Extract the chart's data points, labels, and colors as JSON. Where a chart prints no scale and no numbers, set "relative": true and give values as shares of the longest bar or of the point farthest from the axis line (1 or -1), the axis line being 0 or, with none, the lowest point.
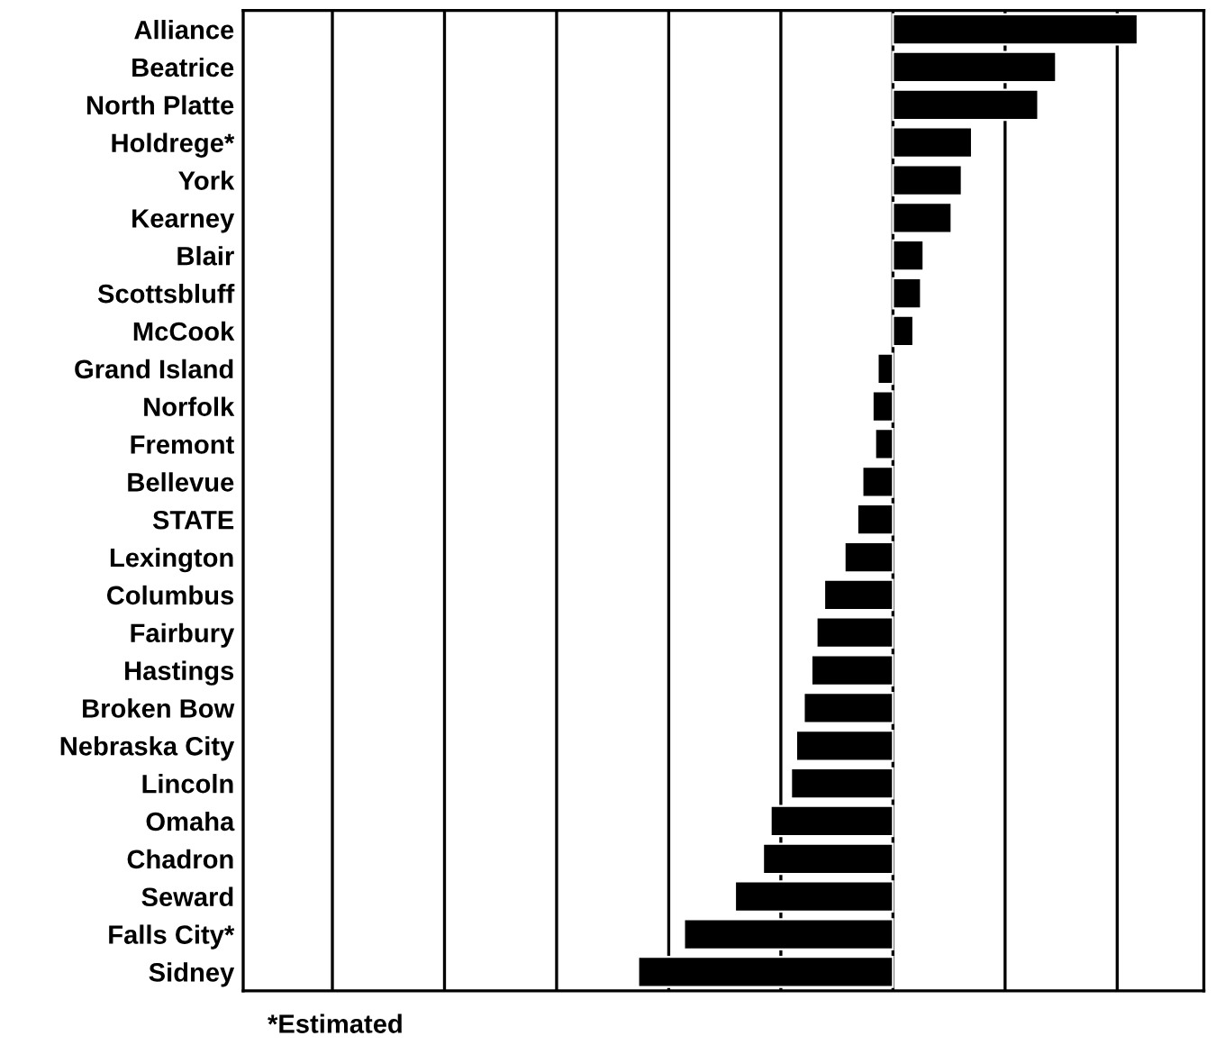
{
  "chart_data": {
    "type": "bar",
    "orientation": "horizontal",
    "relative": true,
    "categories": [
      "Alliance",
      "Beatrice",
      "North Platte",
      "Holdrege*",
      "York",
      "Kearney",
      "Blair",
      "Scottsbluff",
      "McCook",
      "Grand Island",
      "Norfolk",
      "Fremont",
      "Bellevue",
      "STATE",
      "Lexington",
      "Columbus",
      "Fairbury",
      "Hastings",
      "Broken Bow",
      "Nebraska City",
      "Lincoln",
      "Omaha",
      "Chadron",
      "Seward",
      "Falls City*",
      "Sidney"
    ],
    "values": [
      0.96,
      0.64,
      0.57,
      0.31,
      0.27,
      0.23,
      0.12,
      0.11,
      0.08,
      -0.06,
      -0.08,
      -0.07,
      -0.12,
      -0.14,
      -0.19,
      -0.27,
      -0.3,
      -0.32,
      -0.35,
      -0.38,
      -0.4,
      -0.48,
      -0.51,
      -0.62,
      -0.82,
      -1
    ],
    "color": "#000000",
    "grid": "x",
    "annotations": [
      "*Estimated"
    ]
  }
}
